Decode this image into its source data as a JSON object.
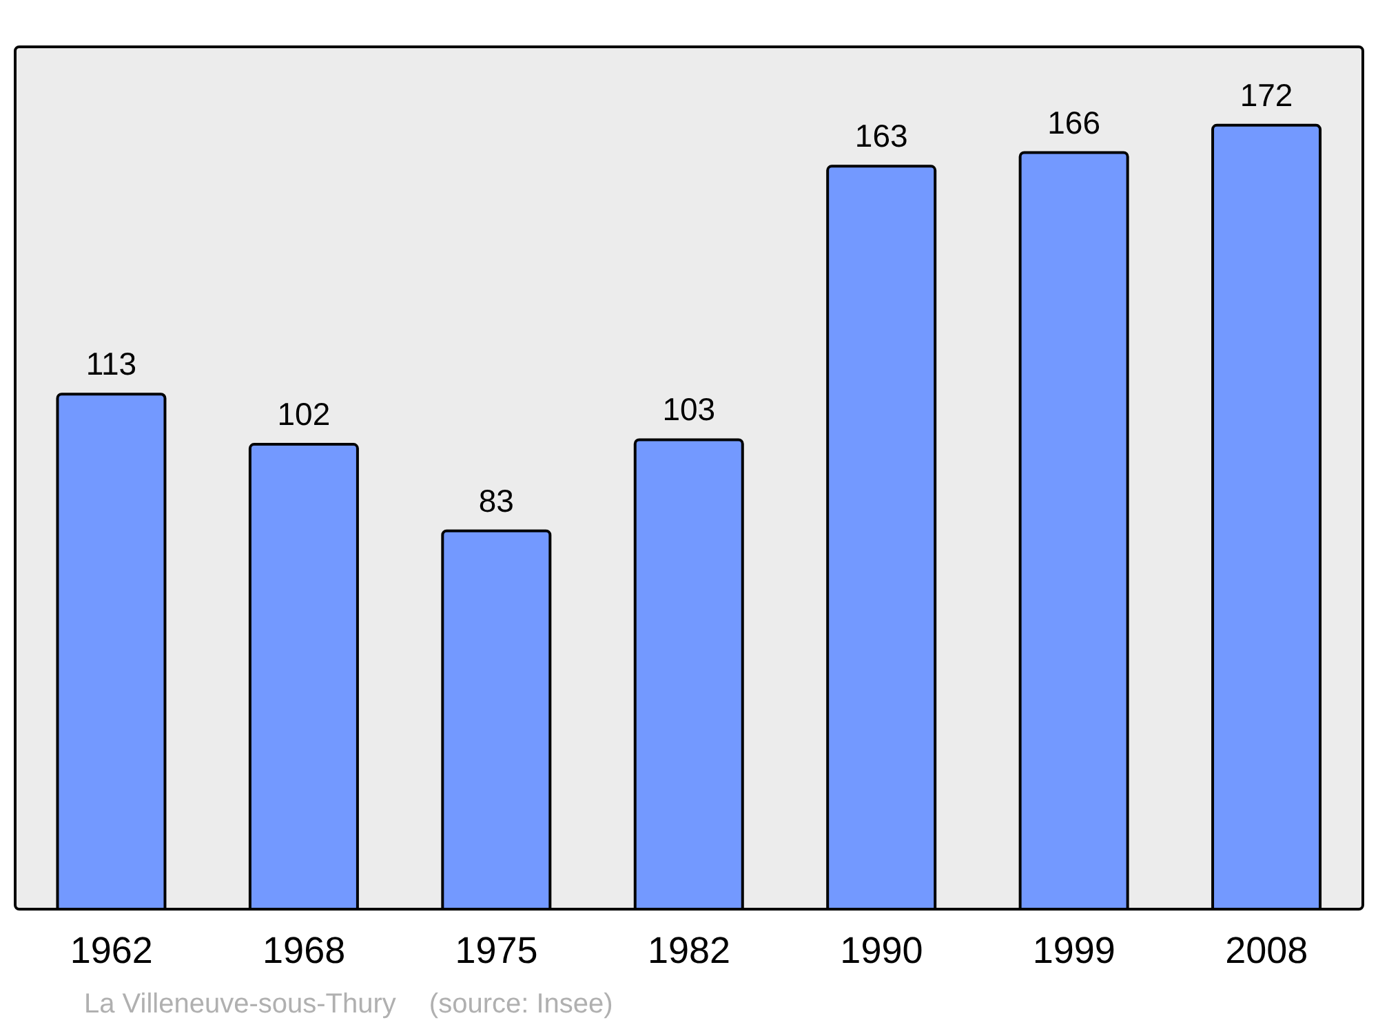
{
  "chart_data": {
    "type": "bar",
    "categories": [
      "1962",
      "1968",
      "1975",
      "1982",
      "1990",
      "1999",
      "2008"
    ],
    "values": [
      113,
      102,
      83,
      103,
      163,
      166,
      172
    ],
    "color": "#7399ff",
    "data_labels": true,
    "annotations": [
      "La Villeneuve-sous-Thury",
      "(source: Insee)"
    ]
  }
}
